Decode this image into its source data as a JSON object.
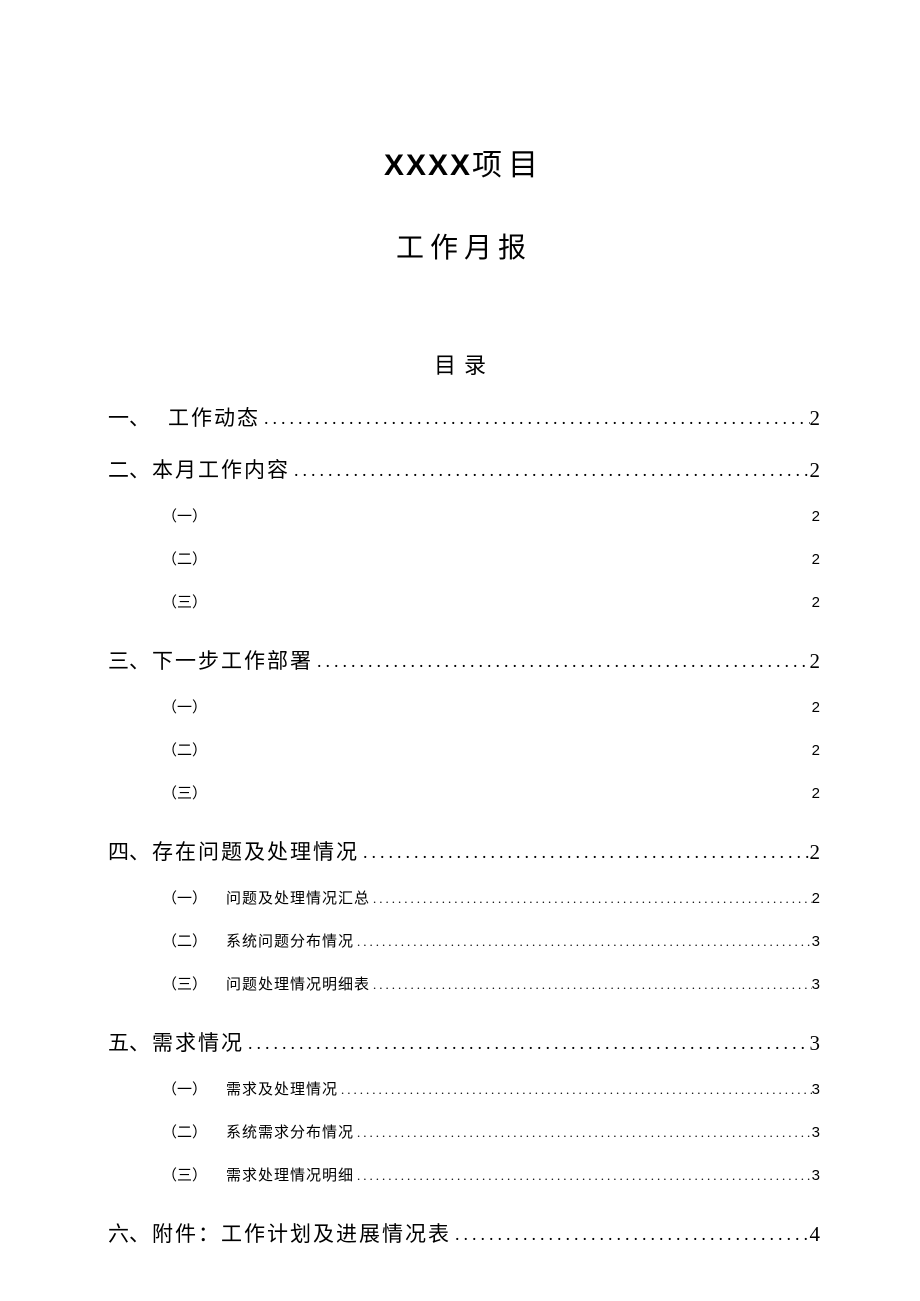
{
  "colors": {
    "background": "#ffffff",
    "text": "#000000"
  },
  "typography": {
    "title_fontsize_pt": 22,
    "subtitle_fontsize_pt": 20,
    "toc_heading_fontsize_pt": 16,
    "l1_fontsize_pt": 16,
    "l2_fontsize_pt": 11,
    "title_font": "SimHei",
    "body_font": "SimSun"
  },
  "title": {
    "project_name": "XXXX",
    "suffix": "项目",
    "subtitle": "工作月报"
  },
  "toc": {
    "heading": "目录",
    "sections": [
      {
        "num": "一、",
        "label": "工作动态",
        "page": "2",
        "label_indent": true,
        "sub": []
      },
      {
        "num": "二、",
        "label": "本月工作内容",
        "page": "2",
        "sub": [
          {
            "num": "（一）",
            "label": "",
            "page": "2",
            "no_leader": true
          },
          {
            "num": "（二）",
            "label": "",
            "page": "2",
            "no_leader": true
          },
          {
            "num": "（三）",
            "label": "",
            "page": "2",
            "no_leader": true
          }
        ]
      },
      {
        "num": "三、",
        "label": "下一步工作部署",
        "page": "2",
        "sub": [
          {
            "num": "（一）",
            "label": "",
            "page": "2",
            "no_leader": true
          },
          {
            "num": "（二）",
            "label": "",
            "page": "2",
            "no_leader": true
          },
          {
            "num": "（三）",
            "label": "",
            "page": "2",
            "no_leader": true
          }
        ]
      },
      {
        "num": "四、",
        "label": "存在问题及处理情况",
        "page": "2",
        "sub": [
          {
            "num": "（一）",
            "label": "问题及处理情况汇总",
            "page": "2"
          },
          {
            "num": "（二）",
            "label": "系统问题分布情况",
            "page": "3"
          },
          {
            "num": "（三）",
            "label": "问题处理情况明细表",
            "page": "3"
          }
        ]
      },
      {
        "num": "五、",
        "label": "需求情况",
        "page": "3",
        "sub": [
          {
            "num": "（一）",
            "label": "需求及处理情况",
            "page": "3"
          },
          {
            "num": "（二）",
            "label": "系统需求分布情况",
            "page": "3"
          },
          {
            "num": "（三）",
            "label": "需求处理情况明细",
            "page": "3"
          }
        ]
      },
      {
        "num": "六、",
        "label": "附件：工作计划及进展情况表",
        "page": "4",
        "sub": []
      }
    ]
  }
}
